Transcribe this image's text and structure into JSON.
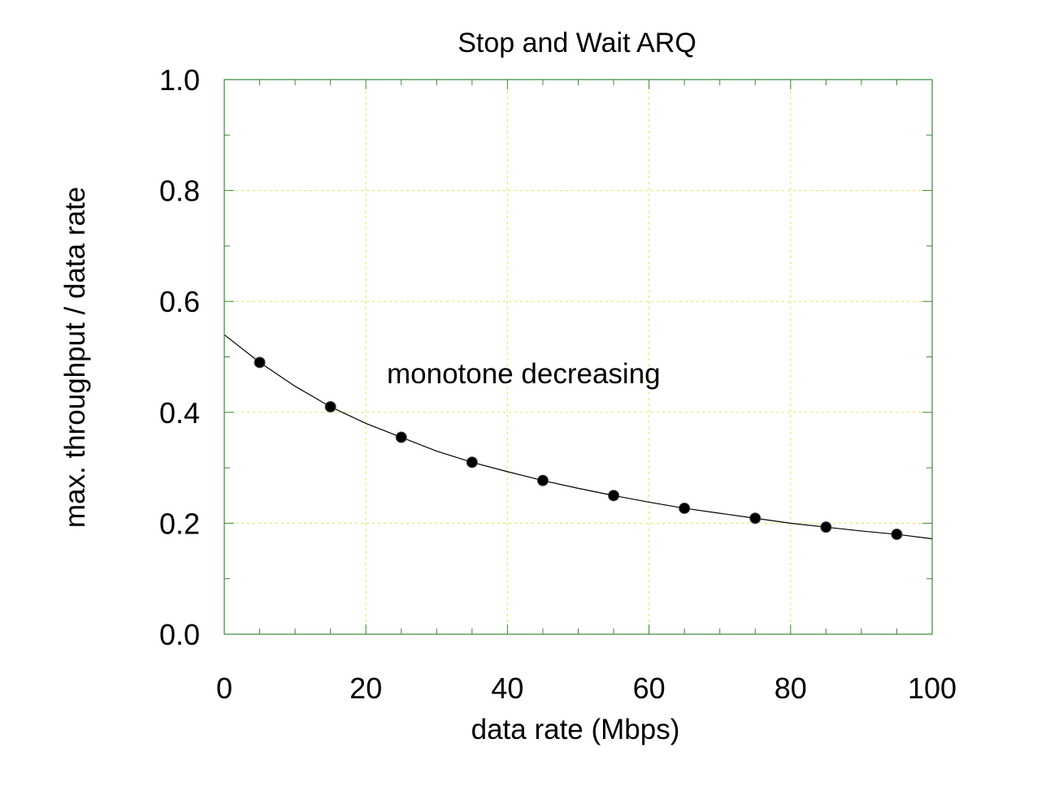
{
  "chart_data": {
    "type": "scatter",
    "title": "Stop and Wait ARQ",
    "xlabel": "data rate (Mbps)",
    "ylabel": "max. throughput / data rate",
    "xlim": [
      0,
      100
    ],
    "ylim": [
      0,
      1.0
    ],
    "x_ticks": [
      "0",
      "20",
      "40",
      "60",
      "80",
      "100"
    ],
    "y_ticks": [
      "0.0",
      "0.2",
      "0.4",
      "0.6",
      "0.8",
      "1.0"
    ],
    "grid": true,
    "annotation": "monotone decreasing",
    "series": [
      {
        "kind": "points",
        "x": [
          5,
          15,
          25,
          35,
          45,
          55,
          65,
          75,
          85,
          95
        ],
        "y": [
          0.49,
          0.41,
          0.355,
          0.31,
          0.277,
          0.25,
          0.227,
          0.209,
          0.193,
          0.18
        ]
      },
      {
        "kind": "fitted-curve",
        "x": [
          0,
          5,
          10,
          15,
          20,
          25,
          30,
          35,
          40,
          45,
          50,
          55,
          60,
          65,
          70,
          75,
          80,
          85,
          90,
          95,
          100
        ],
        "y": [
          0.54,
          0.49,
          0.447,
          0.41,
          0.38,
          0.355,
          0.33,
          0.31,
          0.293,
          0.277,
          0.263,
          0.25,
          0.238,
          0.227,
          0.218,
          0.209,
          0.2,
          0.193,
          0.186,
          0.18,
          0.172
        ]
      }
    ],
    "colors": {
      "frame": "#3a8a3a",
      "grid": "#e8e86a",
      "points": "#000000",
      "curve": "#000000"
    }
  }
}
